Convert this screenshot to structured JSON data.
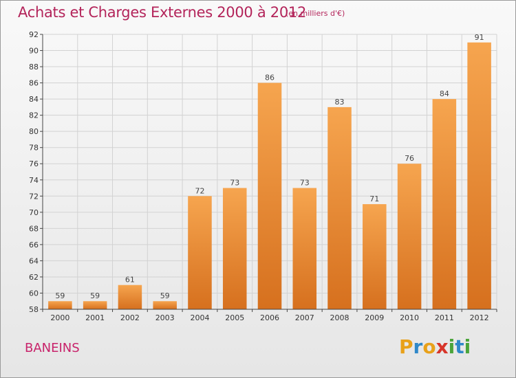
{
  "title": "Achats et Charges Externes 2000 à 2012",
  "subtitle": "(en milliers d'€)",
  "commune": "BANEINS",
  "logo": {
    "text": "Proxiti",
    "letters": [
      {
        "char": "P",
        "color": "#e8a11a"
      },
      {
        "char": "r",
        "color": "#2f88c9"
      },
      {
        "char": "o",
        "color": "#e8a11a"
      },
      {
        "char": "x",
        "color": "#d7352a"
      },
      {
        "char": "i",
        "color": "#4aa43a"
      },
      {
        "char": "t",
        "color": "#2f88c9"
      },
      {
        "char": "i",
        "color": "#4aa43a"
      }
    ]
  },
  "colors": {
    "bar_light": "#f6a54f",
    "bar_dark": "#d6701e",
    "grid": "#d2d2d2",
    "title": "#b3245a"
  },
  "chart_data": {
    "type": "bar",
    "title": "Achats et Charges Externes 2000 à 2012",
    "subtitle": "(en milliers d'€)",
    "categories": [
      "2000",
      "2001",
      "2002",
      "2003",
      "2004",
      "2005",
      "2006",
      "2007",
      "2008",
      "2009",
      "2010",
      "2011",
      "2012"
    ],
    "values": [
      59,
      59,
      61,
      59,
      72,
      73,
      86,
      73,
      83,
      71,
      76,
      84,
      91
    ],
    "ylim": [
      58,
      92
    ],
    "yticks": [
      58,
      60,
      62,
      64,
      66,
      68,
      70,
      72,
      74,
      76,
      78,
      80,
      82,
      84,
      86,
      88,
      90,
      92
    ],
    "grid": true,
    "data_labels": true
  }
}
